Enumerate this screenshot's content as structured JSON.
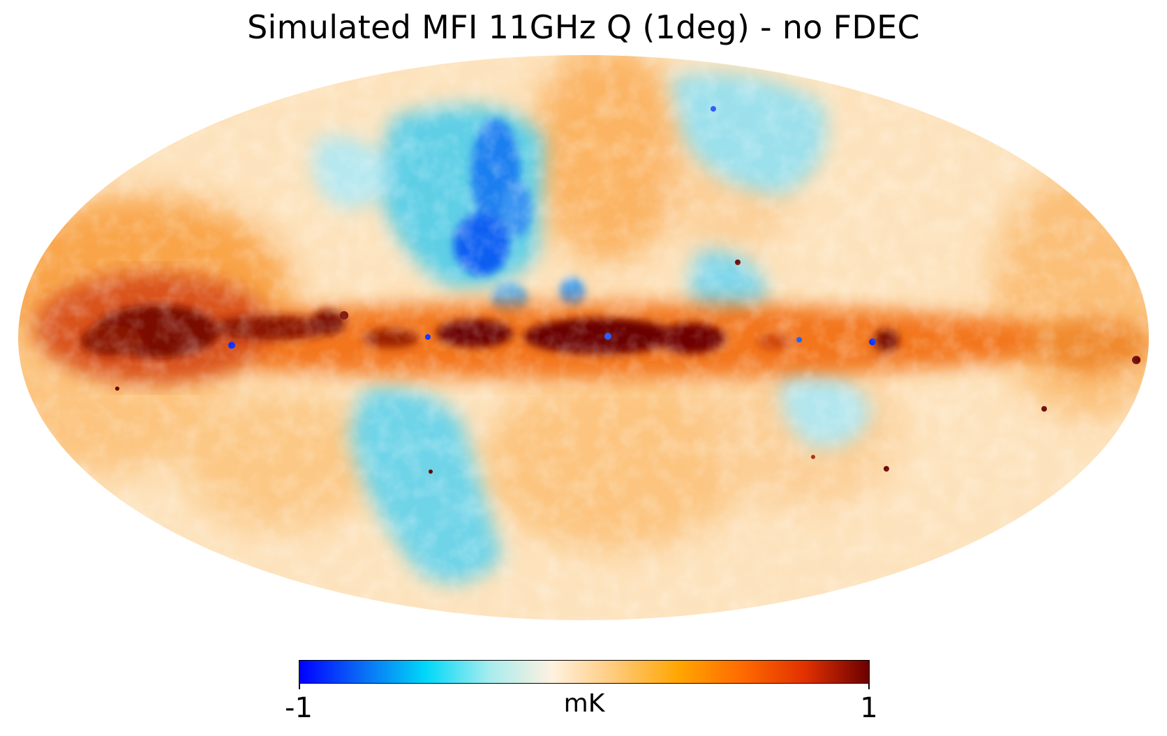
{
  "title": "Simulated MFI 11GHz Q (1deg) -  no FDEC",
  "map": {
    "projection": "Mollweide",
    "coordinate_frame": "Galactic"
  },
  "colorbar": {
    "unit": "mK",
    "min_label": "-1",
    "max_label": "1",
    "min": -1,
    "max": 1,
    "colormap": [
      "#0000ff",
      "#0a6cf5",
      "#00d8f8",
      "#a6ecee",
      "#fff1e0",
      "#ffc978",
      "#ffa500",
      "#ff6a00",
      "#e03000",
      "#6b0000"
    ]
  }
}
